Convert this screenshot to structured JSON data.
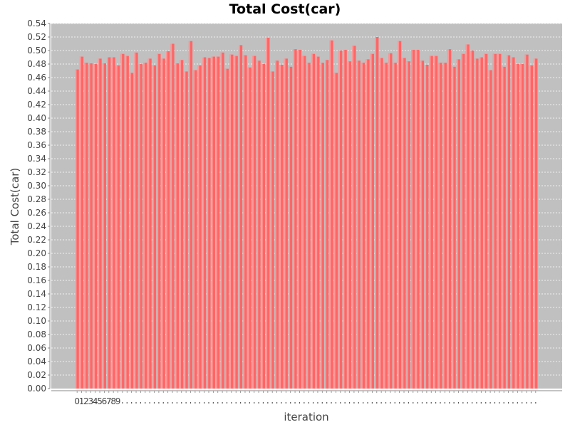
{
  "chart_data": {
    "type": "bar",
    "title": "Total Cost(car)",
    "xlabel": "iteration",
    "ylabel": "Total Cost(car)",
    "ylim": [
      0,
      0.54
    ],
    "y_ticks": [
      "0.00",
      "0.02",
      "0.04",
      "0.06",
      "0.08",
      "0.10",
      "0.12",
      "0.14",
      "0.16",
      "0.18",
      "0.20",
      "0.22",
      "0.24",
      "0.26",
      "0.28",
      "0.30",
      "0.32",
      "0.34",
      "0.36",
      "0.38",
      "0.40",
      "0.42",
      "0.44",
      "0.46",
      "0.48",
      "0.50",
      "0.52",
      "0.54"
    ],
    "x_tick_labels": [
      "0",
      "1",
      "2",
      "3",
      "4",
      "5",
      "6",
      "7",
      "8",
      "9"
    ],
    "grid": true,
    "legend": "none",
    "colors": {
      "bar": "#ff6666",
      "plot_background": "#c0c0c0",
      "grid": "#ffffff"
    },
    "series": [
      {
        "values": [
          0.472,
          0.491,
          0.482,
          0.481,
          0.48,
          0.488,
          0.481,
          0.49,
          0.49,
          0.478,
          0.495,
          0.492,
          0.467,
          0.497,
          0.48,
          0.482,
          0.488,
          0.478,
          0.495,
          0.488,
          0.499,
          0.51,
          0.481,
          0.486,
          0.469,
          0.514,
          0.471,
          0.478,
          0.49,
          0.489,
          0.491,
          0.491,
          0.497,
          0.473,
          0.494,
          0.492,
          0.508,
          0.493,
          0.475,
          0.492,
          0.485,
          0.48,
          0.519,
          0.469,
          0.485,
          0.479,
          0.488,
          0.476,
          0.502,
          0.501,
          0.492,
          0.482,
          0.495,
          0.491,
          0.482,
          0.486,
          0.515,
          0.467,
          0.5,
          0.501,
          0.484,
          0.507,
          0.485,
          0.482,
          0.487,
          0.495,
          0.52,
          0.489,
          0.482,
          0.496,
          0.482,
          0.514,
          0.489,
          0.484,
          0.501,
          0.501,
          0.485,
          0.479,
          0.492,
          0.492,
          0.482,
          0.482,
          0.502,
          0.476,
          0.487,
          0.495,
          0.509,
          0.5,
          0.488,
          0.49,
          0.495,
          0.471,
          0.495,
          0.495,
          0.476,
          0.493,
          0.49,
          0.48,
          0.48,
          0.494,
          0.478,
          0.488
        ]
      }
    ]
  }
}
